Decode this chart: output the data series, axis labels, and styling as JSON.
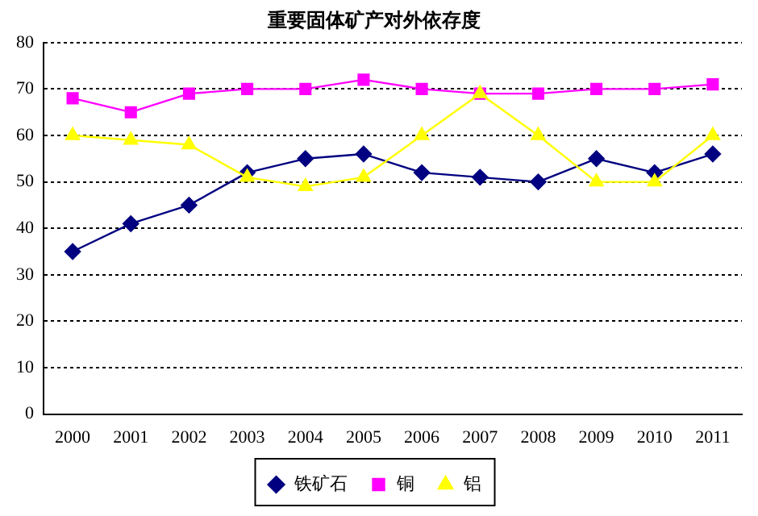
{
  "chart_data": {
    "type": "line",
    "title": "重要固体矿产对外依存度",
    "categories": [
      "2000",
      "2001",
      "2002",
      "2003",
      "2004",
      "2005",
      "2006",
      "2007",
      "2008",
      "2009",
      "2010",
      "2011"
    ],
    "series": [
      {
        "name": "铁矿石",
        "color": "#000080",
        "marker": "diamond",
        "values": [
          35,
          41,
          45,
          52,
          55,
          56,
          52,
          51,
          50,
          55,
          52,
          56
        ]
      },
      {
        "name": "铜",
        "color": "#ff00ff",
        "marker": "square",
        "values": [
          68,
          65,
          69,
          70,
          70,
          72,
          70,
          69,
          69,
          70,
          70,
          71
        ]
      },
      {
        "name": "铝",
        "color": "#ffff00",
        "marker": "triangle",
        "values": [
          60,
          59,
          58,
          51,
          49,
          51,
          60,
          69,
          60,
          50,
          50,
          60
        ]
      }
    ],
    "ylim": [
      0,
      80
    ],
    "yticks": [
      0,
      10,
      20,
      30,
      40,
      50,
      60,
      70,
      80
    ],
    "grid": "y",
    "legend": "bottom",
    "line_style": "solid"
  }
}
